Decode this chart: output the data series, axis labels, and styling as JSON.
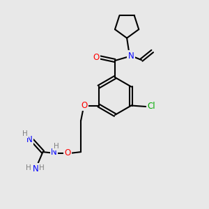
{
  "bg_color": "#e8e8e8",
  "bond_color": "#000000",
  "atom_colors": {
    "O": "#ff0000",
    "N": "#0000ff",
    "Cl": "#00aa00",
    "C": "#000000",
    "H": "#808080"
  }
}
